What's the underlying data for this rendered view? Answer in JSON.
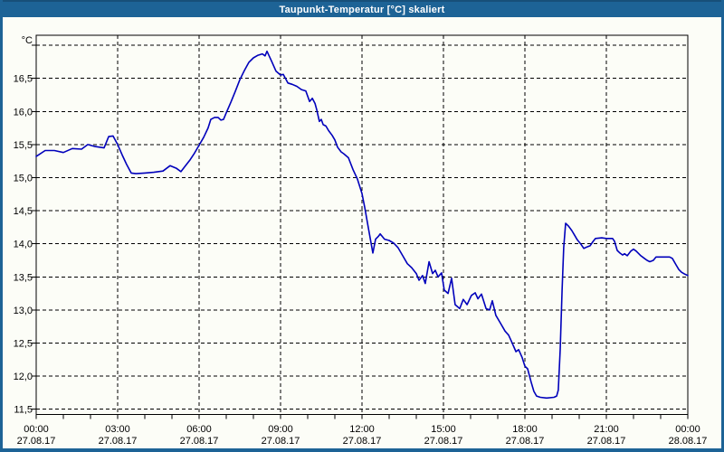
{
  "window": {
    "title": "Taupunkt-Temperatur [°C] skaliert"
  },
  "colors": {
    "titlebar": "#1d6396",
    "titlebar_top_edge": "#174f79",
    "border": "#1d6396",
    "background": "#fcfdf7",
    "curve": "#0000bb",
    "grid": "#000000",
    "title_text": "#ffffff",
    "axis_text": "#000000"
  },
  "chart_data": {
    "type": "line",
    "title": "Taupunkt-Temperatur [°C] skaliert",
    "grid": "dashed",
    "legend": "none",
    "x_axis": {
      "min_hour": 0,
      "max_hour": 24,
      "major_grid_hours": [
        3,
        6,
        9,
        12,
        15,
        18,
        21
      ],
      "minor_tick_every_hours": 1,
      "tick_labels": [
        {
          "hour": 0,
          "time": "00:00",
          "date": "27.08.17"
        },
        {
          "hour": 3,
          "time": "03:00",
          "date": "27.08.17"
        },
        {
          "hour": 6,
          "time": "06:00",
          "date": "27.08.17"
        },
        {
          "hour": 9,
          "time": "09:00",
          "date": "27.08.17"
        },
        {
          "hour": 12,
          "time": "12:00",
          "date": "27.08.17"
        },
        {
          "hour": 15,
          "time": "15:00",
          "date": "27.08.17"
        },
        {
          "hour": 18,
          "time": "18:00",
          "date": "27.08.17"
        },
        {
          "hour": 21,
          "time": "21:00",
          "date": "27.08.17"
        },
        {
          "hour": 24,
          "time": "00:00",
          "date": "28.08.17"
        }
      ]
    },
    "y_axis": {
      "unit": "°C",
      "range_min": 11.43,
      "range_max": 17.17,
      "gridline_step": 0.5,
      "gridlines": [
        11.5,
        12.0,
        12.5,
        13.0,
        13.5,
        14.0,
        14.5,
        15.0,
        15.5,
        16.0,
        16.5,
        17.0
      ],
      "labels": [
        {
          "value": 16.5,
          "text": "16,5"
        },
        {
          "value": 16.0,
          "text": "16,0"
        },
        {
          "value": 15.5,
          "text": "15,5"
        },
        {
          "value": 15.0,
          "text": "15,0"
        },
        {
          "value": 14.5,
          "text": "14,5"
        },
        {
          "value": 14.0,
          "text": "14,0"
        },
        {
          "value": 13.5,
          "text": "13,5"
        },
        {
          "value": 13.0,
          "text": "13,0"
        },
        {
          "value": 12.5,
          "text": "12,5"
        },
        {
          "value": 12.0,
          "text": "12,0"
        },
        {
          "value": 11.5,
          "text": "11,5"
        }
      ]
    },
    "series": [
      {
        "name": "Taupunkt-Temperatur",
        "color": "#0000bb",
        "points": [
          [
            0.0,
            15.32
          ],
          [
            0.33,
            15.41
          ],
          [
            0.67,
            15.41
          ],
          [
            1.0,
            15.38
          ],
          [
            1.33,
            15.44
          ],
          [
            1.67,
            15.43
          ],
          [
            1.9,
            15.5
          ],
          [
            2.17,
            15.47
          ],
          [
            2.5,
            15.45
          ],
          [
            2.67,
            15.62
          ],
          [
            2.83,
            15.63
          ],
          [
            3.0,
            15.5
          ],
          [
            3.17,
            15.34
          ],
          [
            3.33,
            15.2
          ],
          [
            3.5,
            15.07
          ],
          [
            3.67,
            15.06
          ],
          [
            4.0,
            15.07
          ],
          [
            4.33,
            15.08
          ],
          [
            4.67,
            15.1
          ],
          [
            4.93,
            15.18
          ],
          [
            5.17,
            15.14
          ],
          [
            5.33,
            15.09
          ],
          [
            5.5,
            15.18
          ],
          [
            5.67,
            15.27
          ],
          [
            5.83,
            15.37
          ],
          [
            6.0,
            15.49
          ],
          [
            6.17,
            15.61
          ],
          [
            6.33,
            15.75
          ],
          [
            6.43,
            15.88
          ],
          [
            6.57,
            15.91
          ],
          [
            6.7,
            15.91
          ],
          [
            6.8,
            15.87
          ],
          [
            6.9,
            15.88
          ],
          [
            7.0,
            15.98
          ],
          [
            7.17,
            16.14
          ],
          [
            7.33,
            16.3
          ],
          [
            7.5,
            16.48
          ],
          [
            7.67,
            16.62
          ],
          [
            7.83,
            16.74
          ],
          [
            8.0,
            16.81
          ],
          [
            8.17,
            16.85
          ],
          [
            8.33,
            16.87
          ],
          [
            8.43,
            16.84
          ],
          [
            8.5,
            16.91
          ],
          [
            8.67,
            16.76
          ],
          [
            8.83,
            16.61
          ],
          [
            9.0,
            16.55
          ],
          [
            9.1,
            16.56
          ],
          [
            9.27,
            16.43
          ],
          [
            9.43,
            16.41
          ],
          [
            9.6,
            16.38
          ],
          [
            9.77,
            16.33
          ],
          [
            9.93,
            16.31
          ],
          [
            10.07,
            16.15
          ],
          [
            10.17,
            16.2
          ],
          [
            10.27,
            16.12
          ],
          [
            10.33,
            16.03
          ],
          [
            10.43,
            15.85
          ],
          [
            10.5,
            15.88
          ],
          [
            10.57,
            15.8
          ],
          [
            10.67,
            15.78
          ],
          [
            10.77,
            15.71
          ],
          [
            10.9,
            15.64
          ],
          [
            11.0,
            15.57
          ],
          [
            11.1,
            15.46
          ],
          [
            11.23,
            15.39
          ],
          [
            11.33,
            15.36
          ],
          [
            11.5,
            15.3
          ],
          [
            11.67,
            15.12
          ],
          [
            11.83,
            14.98
          ],
          [
            12.0,
            14.76
          ],
          [
            12.1,
            14.55
          ],
          [
            12.23,
            14.25
          ],
          [
            12.33,
            14.02
          ],
          [
            12.4,
            13.86
          ],
          [
            12.5,
            14.07
          ],
          [
            12.6,
            14.11
          ],
          [
            12.67,
            14.15
          ],
          [
            12.83,
            14.07
          ],
          [
            13.0,
            14.05
          ],
          [
            13.17,
            14.01
          ],
          [
            13.33,
            13.94
          ],
          [
            13.5,
            13.82
          ],
          [
            13.67,
            13.7
          ],
          [
            13.83,
            13.64
          ],
          [
            14.0,
            13.55
          ],
          [
            14.1,
            13.45
          ],
          [
            14.23,
            13.52
          ],
          [
            14.33,
            13.4
          ],
          [
            14.47,
            13.73
          ],
          [
            14.6,
            13.55
          ],
          [
            14.7,
            13.6
          ],
          [
            14.8,
            13.5
          ],
          [
            14.93,
            13.56
          ],
          [
            15.03,
            13.3
          ],
          [
            15.17,
            13.25
          ],
          [
            15.3,
            13.48
          ],
          [
            15.43,
            13.08
          ],
          [
            15.6,
            13.02
          ],
          [
            15.73,
            13.16
          ],
          [
            15.87,
            13.08
          ],
          [
            16.03,
            13.22
          ],
          [
            16.17,
            13.26
          ],
          [
            16.27,
            13.17
          ],
          [
            16.4,
            13.24
          ],
          [
            16.57,
            13.02
          ],
          [
            16.7,
            13.0
          ],
          [
            16.8,
            13.14
          ],
          [
            16.93,
            12.92
          ],
          [
            17.1,
            12.8
          ],
          [
            17.27,
            12.68
          ],
          [
            17.4,
            12.62
          ],
          [
            17.5,
            12.53
          ],
          [
            17.67,
            12.37
          ],
          [
            17.77,
            12.4
          ],
          [
            17.9,
            12.28
          ],
          [
            18.0,
            12.15
          ],
          [
            18.1,
            12.11
          ],
          [
            18.23,
            11.91
          ],
          [
            18.33,
            11.77
          ],
          [
            18.43,
            11.7
          ],
          [
            18.57,
            11.68
          ],
          [
            18.8,
            11.67
          ],
          [
            19.07,
            11.68
          ],
          [
            19.17,
            11.7
          ],
          [
            19.23,
            11.79
          ],
          [
            19.3,
            12.4
          ],
          [
            19.37,
            13.3
          ],
          [
            19.43,
            13.95
          ],
          [
            19.5,
            14.31
          ],
          [
            19.6,
            14.27
          ],
          [
            19.73,
            14.2
          ],
          [
            19.83,
            14.13
          ],
          [
            19.93,
            14.06
          ],
          [
            20.07,
            13.99
          ],
          [
            20.17,
            13.93
          ],
          [
            20.27,
            13.95
          ],
          [
            20.4,
            13.97
          ],
          [
            20.5,
            14.03
          ],
          [
            20.6,
            14.08
          ],
          [
            20.83,
            14.09
          ],
          [
            21.0,
            14.08
          ],
          [
            21.23,
            14.08
          ],
          [
            21.3,
            14.04
          ],
          [
            21.4,
            13.9
          ],
          [
            21.5,
            13.86
          ],
          [
            21.6,
            13.83
          ],
          [
            21.67,
            13.85
          ],
          [
            21.77,
            13.82
          ],
          [
            21.9,
            13.89
          ],
          [
            22.0,
            13.92
          ],
          [
            22.1,
            13.89
          ],
          [
            22.27,
            13.82
          ],
          [
            22.4,
            13.78
          ],
          [
            22.5,
            13.75
          ],
          [
            22.6,
            13.73
          ],
          [
            22.73,
            13.75
          ],
          [
            22.83,
            13.8
          ],
          [
            23.33,
            13.8
          ],
          [
            23.43,
            13.78
          ],
          [
            23.57,
            13.68
          ],
          [
            23.67,
            13.61
          ],
          [
            23.77,
            13.57
          ],
          [
            23.9,
            13.54
          ],
          [
            24.0,
            13.52
          ]
        ]
      }
    ]
  }
}
